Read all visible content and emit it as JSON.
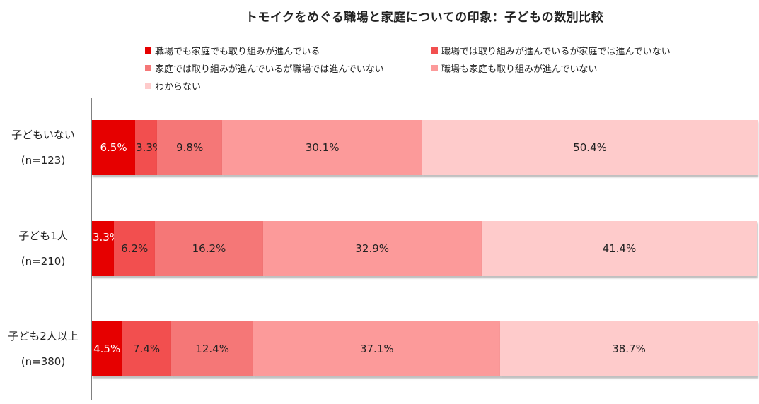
{
  "chart_data": {
    "type": "bar",
    "orientation": "horizontal",
    "stacked": true,
    "percent": true,
    "title": "トモイクをめぐる職場と家庭についての印象：子どもの数別比較",
    "categories": [
      {
        "label": "子どもいない",
        "n": "(n=123)"
      },
      {
        "label": "子ども1人",
        "n": "(n=210)"
      },
      {
        "label": "子ども2人以上",
        "n": "(n=380)"
      }
    ],
    "series": [
      {
        "name": "職場でも家庭でも取り組みが進んでいる",
        "color": "#e60000",
        "values": [
          6.5,
          3.3,
          4.5
        ],
        "label_color": "#ffffff"
      },
      {
        "name": "職場では取り組みが進んでいるが家庭では進んでいない",
        "color": "#f24f4f",
        "values": [
          3.3,
          6.2,
          7.4
        ],
        "label_color": "#222222"
      },
      {
        "name": "家庭では取り組みが進んでいるが職場では進んでいない",
        "color": "#f57777",
        "values": [
          9.8,
          16.2,
          12.4
        ],
        "label_color": "#222222"
      },
      {
        "name": "職場も家庭も取り組みが進んでいない",
        "color": "#fc9a9a",
        "values": [
          30.1,
          32.9,
          37.1
        ],
        "label_color": "#222222"
      },
      {
        "name": "わからない",
        "color": "#fecbcb",
        "values": [
          50.4,
          41.4,
          38.7
        ],
        "label_color": "#222222"
      }
    ],
    "value_suffix": "%",
    "xlim": [
      0,
      100
    ],
    "legend_position": "top"
  }
}
